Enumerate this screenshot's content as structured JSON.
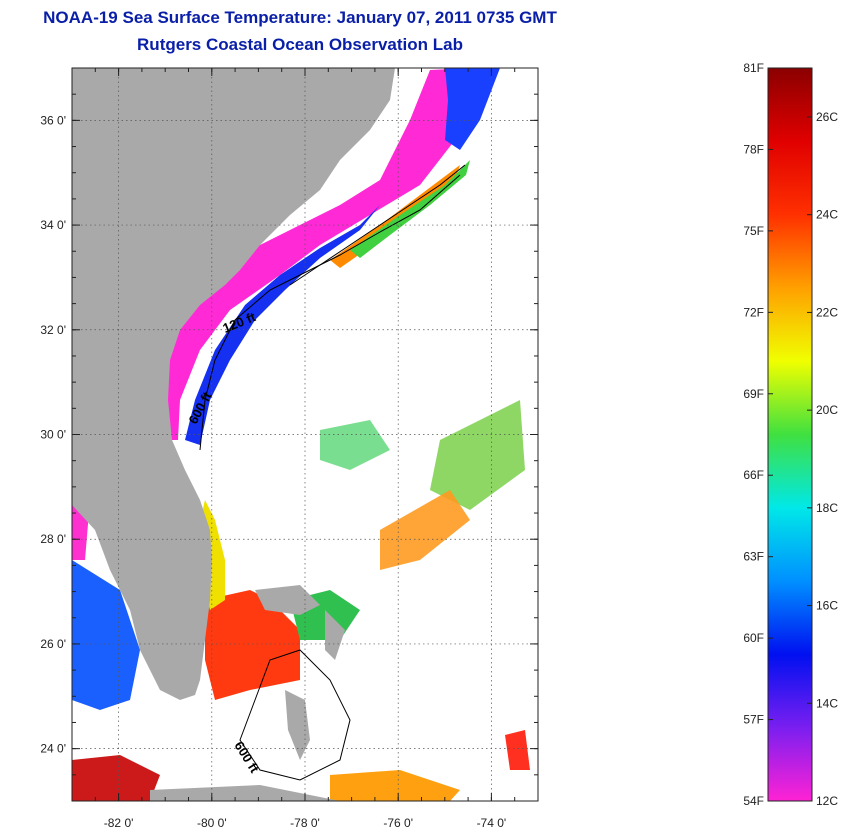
{
  "title": "NOAA-19 Sea Surface Temperature:  January 07, 2011 0735 GMT",
  "subtitle": "Rutgers Coastal Ocean Observation Lab",
  "map": {
    "lon_range": [
      -83.0,
      -73.0
    ],
    "lat_range": [
      23.0,
      37.0
    ],
    "lat_ticks": [
      {
        "value": 36,
        "label": "36 0'"
      },
      {
        "value": 34,
        "label": "34 0'"
      },
      {
        "value": 32,
        "label": "32 0'"
      },
      {
        "value": 30,
        "label": "30 0'"
      },
      {
        "value": 28,
        "label": "28 0'"
      },
      {
        "value": 26,
        "label": "26 0'"
      },
      {
        "value": 24,
        "label": "24 0'"
      }
    ],
    "lon_ticks": [
      {
        "value": -82,
        "label": "-82 0'"
      },
      {
        "value": -80,
        "label": "-80 0'"
      },
      {
        "value": -78,
        "label": "-78 0'"
      },
      {
        "value": -76,
        "label": "-76 0'"
      },
      {
        "value": -74,
        "label": "-74 0'"
      }
    ],
    "contour_labels": {
      "c120": "120 ft",
      "c600a": "600 ft",
      "c600b": "600 ft"
    },
    "land_color": "#a9a9a9",
    "water_color": "#ffffff"
  },
  "colorbar": {
    "fahrenheit_labels": [
      "81F",
      "78F",
      "75F",
      "72F",
      "69F",
      "66F",
      "63F",
      "60F",
      "57F",
      "54F"
    ],
    "celsius_labels": [
      "26C",
      "24C",
      "22C",
      "20C",
      "18C",
      "16C",
      "14C",
      "12C"
    ],
    "stops": [
      "#ff22d4",
      "#7a1ff0",
      "#0010f0",
      "#0090ff",
      "#00e8e8",
      "#40e040",
      "#f0ff00",
      "#ffa000",
      "#ff3000",
      "#e00000",
      "#8b0000"
    ]
  }
}
